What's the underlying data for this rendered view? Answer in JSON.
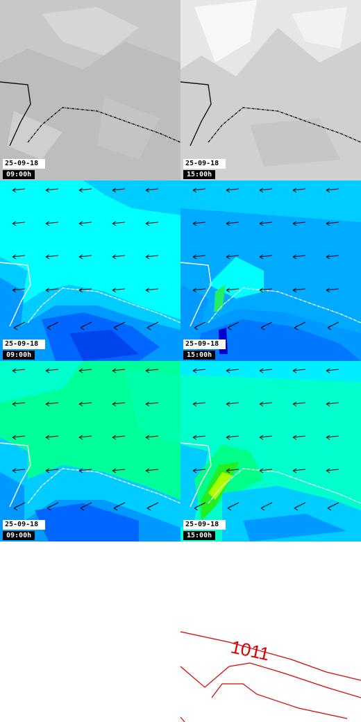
{
  "panels": [
    {
      "id": "cloud-0900",
      "date": "25-09-18",
      "time": "09:00h",
      "layer": "cloud",
      "colors": [
        "#bdbdbd",
        "#c8c8c8",
        "#d6d6d6",
        "#a9a9a9"
      ]
    },
    {
      "id": "cloud-1500",
      "date": "25-09-18",
      "time": "15:00h",
      "layer": "cloud",
      "colors": [
        "#d0d0d0",
        "#e6e6e6",
        "#f7f7f7",
        "#bcbcbc"
      ]
    },
    {
      "id": "wind-a-0900",
      "date": "25-09-18",
      "time": "09:00h",
      "layer": "wind",
      "colors": [
        "#00ffff",
        "#00ccff",
        "#0099ff",
        "#0066ff",
        "#0044ee"
      ]
    },
    {
      "id": "wind-a-1500",
      "date": "25-09-18",
      "time": "15:00h",
      "layer": "wind",
      "colors": [
        "#00aaff",
        "#00ccff",
        "#00ffff",
        "#0066ff",
        "#22ee66",
        "#0000cc"
      ]
    },
    {
      "id": "wind-b-0900",
      "date": "25-09-18",
      "time": "09:00h",
      "layer": "wind",
      "colors": [
        "#00ff99",
        "#00ffcc",
        "#00ccff",
        "#0099ff",
        "#0066ff"
      ]
    },
    {
      "id": "wind-b-1500",
      "date": "25-09-18",
      "time": "15:00h",
      "layer": "wind",
      "colors": [
        "#00ffcc",
        "#00eeff",
        "#00ccff",
        "#0099ff",
        "#22ee22",
        "#aaff00"
      ]
    }
  ],
  "isobar": {
    "label": "1011",
    "color": "#dd0000"
  },
  "arrow_color": "#000000",
  "coast_color": "#ffffff"
}
